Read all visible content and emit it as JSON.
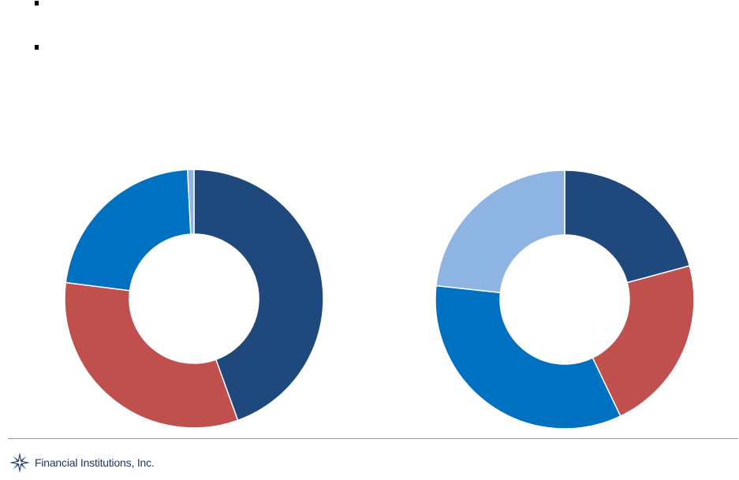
{
  "brand": {
    "name": "Financial Institutions, Inc.",
    "logo_icon": "compass-star-icon",
    "color": "#1f3864"
  },
  "chart_data": [
    {
      "type": "pie",
      "style": "donut",
      "start_angle_deg": 0,
      "direction": "clockwise",
      "slices": [
        {
          "value": 44.5,
          "color": "#1f497d"
        },
        {
          "value": 32.5,
          "color": "#c0504d"
        },
        {
          "value": 22.2,
          "color": "#0070c0"
        },
        {
          "value": 0.8,
          "color": "#8eb4e3"
        }
      ]
    },
    {
      "type": "pie",
      "style": "donut",
      "start_angle_deg": 0,
      "direction": "clockwise",
      "slices": [
        {
          "value": 20.8,
          "color": "#1f497d"
        },
        {
          "value": 22.1,
          "color": "#c0504d"
        },
        {
          "value": 33.8,
          "color": "#0070c0"
        },
        {
          "value": 23.3,
          "color": "#8eb4e3"
        }
      ]
    }
  ]
}
